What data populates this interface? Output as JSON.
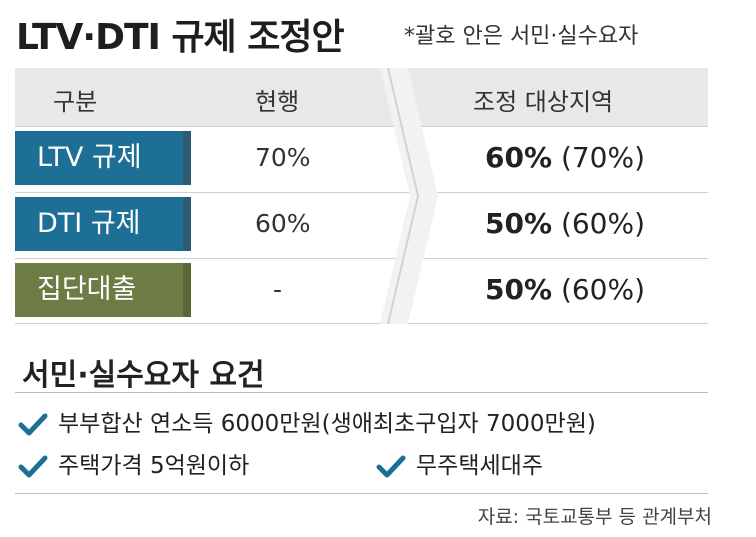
{
  "title": "LTV·DTI 규제 조정안",
  "note": "*괄호 안은 서민·실수요자",
  "table": {
    "headers": [
      "구분",
      "현행",
      "조정 대상지역"
    ],
    "rows": [
      {
        "label": "LTV 규제",
        "current": "70%",
        "adjusted": "60%",
        "adjusted_paren": "(70%)",
        "color": "#1d6f95"
      },
      {
        "label": "DTI 규제",
        "current": "60%",
        "adjusted": "50%",
        "adjusted_paren": "(60%)",
        "color": "#1d6f95"
      },
      {
        "label": "집단대출",
        "current": "-",
        "adjusted": "50%",
        "adjusted_paren": "(60%)",
        "color": "#6d7c45"
      }
    ]
  },
  "requirements": {
    "title": "서민·실수요자 요건",
    "items": [
      "부부합산 연소득 6000만원(생애최초구입자 7000만원)",
      "주택가격 5억원이하",
      "무주택세대주"
    ],
    "check_icon": "check-icon",
    "check_color": "#1d6f95"
  },
  "source": "자료: 국토교통부 등 관계부처"
}
